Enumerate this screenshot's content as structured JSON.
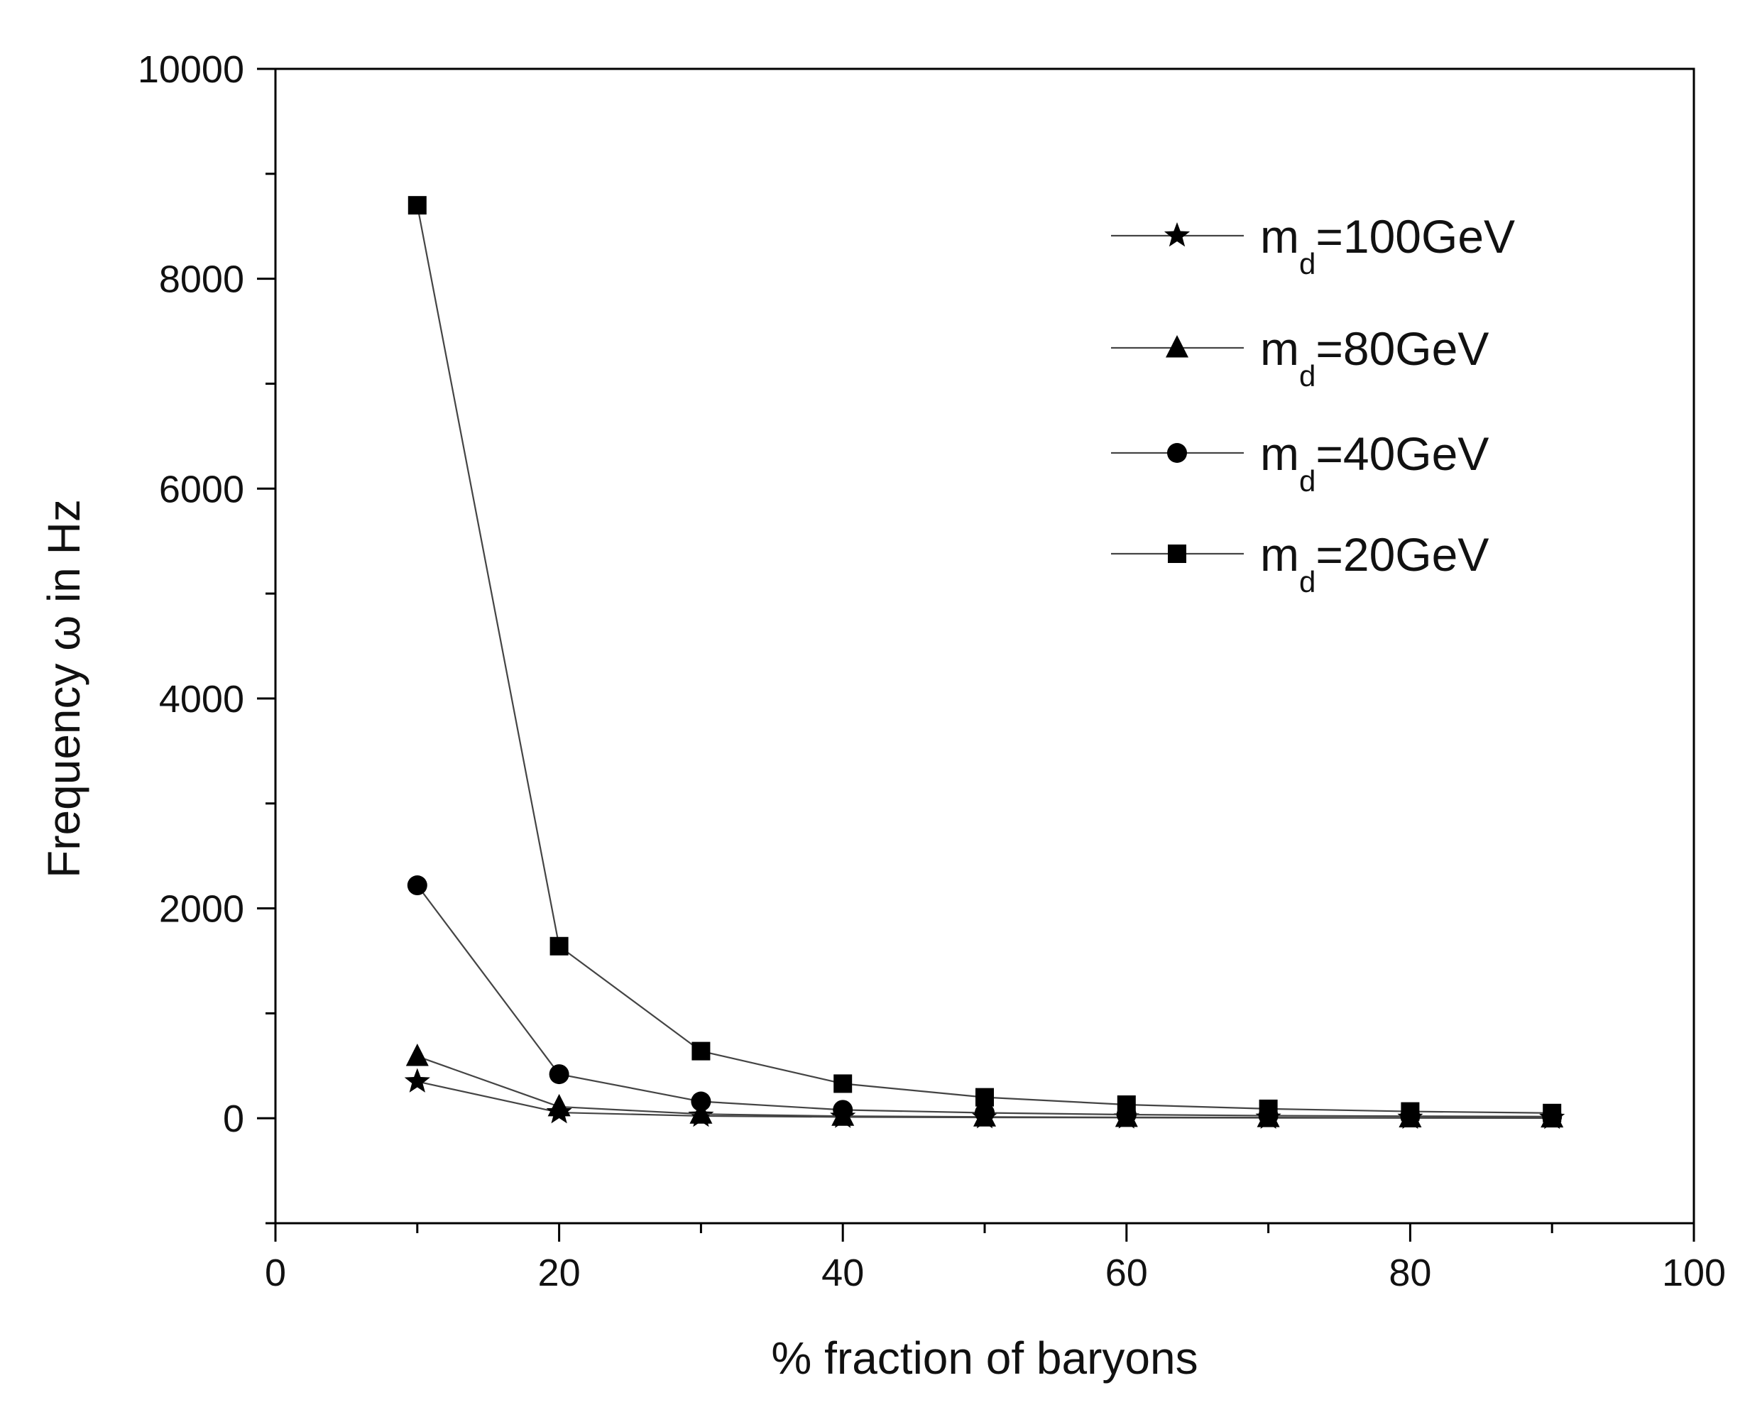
{
  "chart_data": {
    "type": "line",
    "title": "",
    "xlabel": "% fraction of baryons",
    "ylabel": "Frequency ω in Hz",
    "xlim": [
      0,
      100
    ],
    "ylim": [
      -1000,
      10000
    ],
    "x_ticks": [
      0,
      20,
      40,
      60,
      80,
      100
    ],
    "y_ticks": [
      0,
      2000,
      4000,
      6000,
      8000,
      10000
    ],
    "x_tick_labels": [
      "0",
      "20",
      "40",
      "60",
      "80",
      "100"
    ],
    "y_tick_labels": [
      "0",
      "2000",
      "4000",
      "6000",
      "8000",
      "10000"
    ],
    "grid": false,
    "legend_position": "top-right",
    "x": [
      10,
      20,
      30,
      40,
      50,
      60,
      70,
      80,
      90
    ],
    "series": [
      {
        "name": "m_d=100GeV",
        "label_main": "m",
        "label_sub": "d",
        "label_rest": "=100GeV",
        "marker": "star",
        "values": [
          350,
          55,
          22,
          12,
          8,
          6,
          4,
          3,
          2
        ]
      },
      {
        "name": "m_d=80GeV",
        "label_main": "m",
        "label_sub": "d",
        "label_rest": "=80GeV",
        "marker": "triangle",
        "values": [
          590,
          110,
          40,
          20,
          13,
          9,
          7,
          5,
          4
        ]
      },
      {
        "name": "m_d=40GeV",
        "label_main": "m",
        "label_sub": "d",
        "label_rest": "=40GeV",
        "marker": "circle",
        "values": [
          2220,
          420,
          160,
          80,
          52,
          35,
          25,
          20,
          16
        ]
      },
      {
        "name": "m_d=20GeV",
        "label_main": "m",
        "label_sub": "d",
        "label_rest": "=20GeV",
        "marker": "square",
        "values": [
          8700,
          1640,
          640,
          330,
          200,
          130,
          90,
          65,
          50
        ]
      }
    ]
  }
}
